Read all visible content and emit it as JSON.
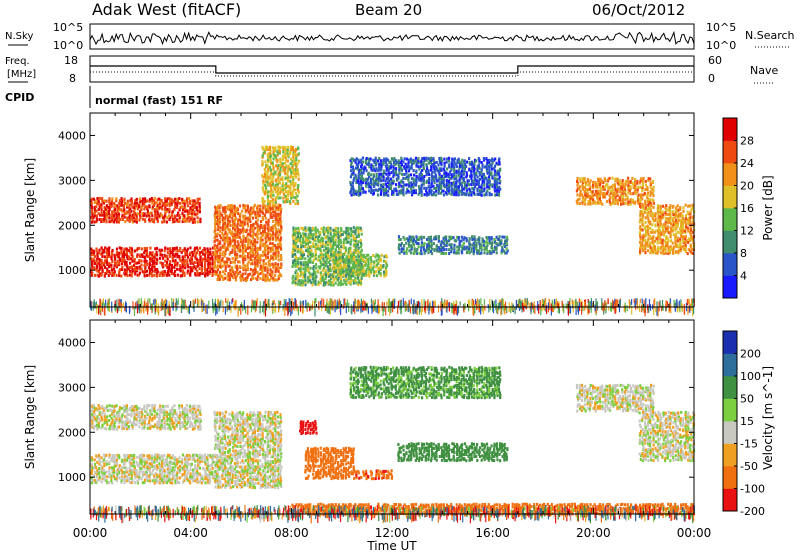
{
  "header": {
    "station": "Adak West (fitACF)",
    "beam": "Beam 20",
    "date": "06/Oct/2012"
  },
  "noise_panel": {
    "left_label": "N.Sky",
    "right_label": "N.Search",
    "left_ticks": [
      "10^5",
      "10^0"
    ],
    "right_ticks": [
      "10^5",
      "10^0"
    ]
  },
  "freq_panel": {
    "left_label_1": "Freq.",
    "left_label_2": "[MHz]",
    "right_label": "Nave",
    "left_ticks": [
      "18",
      "8"
    ],
    "right_ticks": [
      "60",
      "0"
    ]
  },
  "cpid": {
    "label": "CPID",
    "mode": "normal (fast) 151 RF"
  },
  "chart_data": [
    {
      "type": "heatmap",
      "title": "Power",
      "ylabel": "Slant Range [km]",
      "xlabel": "Time UT",
      "x_ticks": [
        "00:00",
        "04:00",
        "08:00",
        "12:00",
        "16:00",
        "20:00",
        "00:00"
      ],
      "y_ticks": [
        1000,
        2000,
        3000,
        4000
      ],
      "ylim": [
        180,
        4500
      ],
      "xlim_hours": [
        0,
        24
      ],
      "colorbar": {
        "label": "Power [dB]",
        "ticks": [
          "4",
          "8",
          "12",
          "16",
          "20",
          "24",
          "28"
        ],
        "range": [
          0,
          32
        ],
        "colors": [
          "#1a1aff",
          "#2a55c8",
          "#3f8c6e",
          "#5fb84a",
          "#e0c028",
          "#f09018",
          "#ef4a10",
          "#e00000"
        ]
      },
      "regions": [
        {
          "t0": 0.0,
          "t1": 4.9,
          "r0": 900,
          "r1": 1550,
          "value": 29
        },
        {
          "t0": 0.0,
          "t1": 4.4,
          "r0": 2100,
          "r1": 2650,
          "value": 27
        },
        {
          "t0": 4.9,
          "t1": 7.6,
          "r0": 800,
          "r1": 2500,
          "value": 24
        },
        {
          "t0": 6.8,
          "t1": 8.3,
          "r0": 2500,
          "r1": 3800,
          "value": 18
        },
        {
          "t0": 8.0,
          "t1": 10.8,
          "r0": 700,
          "r1": 2000,
          "value": 14
        },
        {
          "t0": 9.6,
          "t1": 11.8,
          "r0": 900,
          "r1": 1400,
          "value": 15
        },
        {
          "t0": 10.3,
          "t1": 16.3,
          "r0": 2700,
          "r1": 3550,
          "value": 6
        },
        {
          "t0": 12.2,
          "t1": 16.6,
          "r0": 1400,
          "r1": 1800,
          "value": 9
        },
        {
          "t0": 19.3,
          "t1": 22.4,
          "r0": 2500,
          "r1": 3100,
          "value": 22
        },
        {
          "t0": 21.8,
          "t1": 24.0,
          "r0": 1400,
          "r1": 2500,
          "value": 21
        }
      ]
    },
    {
      "type": "heatmap",
      "title": "Velocity",
      "ylabel": "Slant Range [km]",
      "xlabel": "Time UT",
      "x_ticks": [
        "00:00",
        "04:00",
        "08:00",
        "12:00",
        "16:00",
        "20:00",
        "00:00"
      ],
      "y_ticks": [
        1000,
        2000,
        3000,
        4000
      ],
      "ylim": [
        180,
        4500
      ],
      "xlim_hours": [
        0,
        24
      ],
      "colorbar": {
        "label": "Velocity [m s^-1]",
        "ticks": [
          "200",
          "100",
          "50",
          "15",
          "-15",
          "-50",
          "-100",
          "-200"
        ],
        "colors": [
          "#1a2fb0",
          "#2d6e9a",
          "#3f9040",
          "#7cd040",
          "#c8c8c0",
          "#f0a020",
          "#f07010",
          "#e81010"
        ]
      },
      "regions": [
        {
          "t0": 0.0,
          "t1": 4.9,
          "r0": 900,
          "r1": 1550,
          "value": 0
        },
        {
          "t0": 0.0,
          "t1": 4.4,
          "r0": 2100,
          "r1": 2650,
          "value": 0
        },
        {
          "t0": 4.9,
          "t1": 7.6,
          "r0": 800,
          "r1": 2500,
          "value": 0
        },
        {
          "t0": 8.3,
          "t1": 9.0,
          "r0": 2000,
          "r1": 2300,
          "value": -180
        },
        {
          "t0": 8.5,
          "t1": 10.5,
          "r0": 1000,
          "r1": 1700,
          "value": -40
        },
        {
          "t0": 10.5,
          "t1": 12.0,
          "r0": 1000,
          "r1": 1200,
          "value": -70
        },
        {
          "t0": 10.3,
          "t1": 16.3,
          "r0": 2800,
          "r1": 3500,
          "value": 35
        },
        {
          "t0": 12.2,
          "t1": 16.6,
          "r0": 1400,
          "r1": 1800,
          "value": 45
        },
        {
          "t0": 19.3,
          "t1": 22.4,
          "r0": 2500,
          "r1": 3100,
          "value": 0
        },
        {
          "t0": 21.8,
          "t1": 24.0,
          "r0": 1400,
          "r1": 2500,
          "value": 0
        },
        {
          "t0": 8.0,
          "t1": 24.0,
          "r0": 200,
          "r1": 450,
          "value": -60
        }
      ]
    }
  ]
}
